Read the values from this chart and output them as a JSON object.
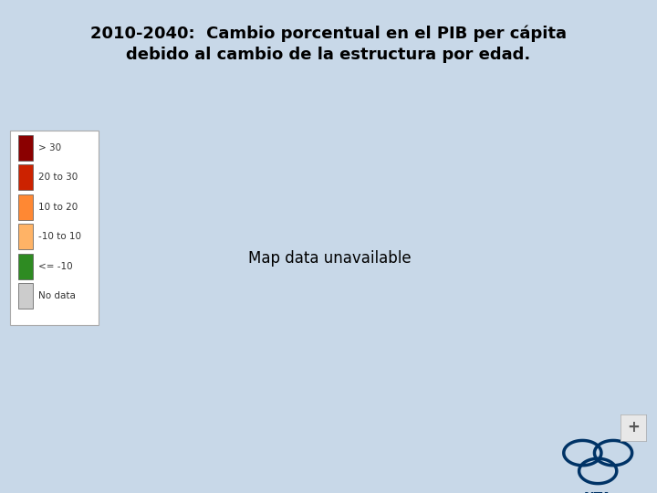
{
  "title_line1": "2010-2040:  Cambio porcentual en el PIB per cápita",
  "title_line2": "debido al cambio de la estructura por edad.",
  "title_fontsize": 13,
  "background_color": "#c8d8e8",
  "ocean_color": "#B8CCE0",
  "legend_labels": [
    "> 30",
    "20 to 30",
    "10 to 20",
    "-10 to 10",
    "<= -10",
    "No data"
  ],
  "legend_colors": [
    "#8B0000",
    "#CC2200",
    "#FF8833",
    "#FFB366",
    "#2E8B22",
    "#CCCCCC"
  ],
  "country_colors": {
    "Canada": "#2E8B22",
    "United States of America": "#2E8B22",
    "Greenland": "#CCCCCC",
    "Russia": "#2E8B22",
    "Norway": "#2E8B22",
    "Sweden": "#2E8B22",
    "Finland": "#2E8B22",
    "Denmark": "#2E8B22",
    "Germany": "#2E8B22",
    "Japan": "#2E8B22",
    "Republic of Korea": "#2E8B22",
    "South Korea": "#2E8B22",
    "China": "#2E8B22",
    "Australia": "#2E8B22",
    "New Zealand": "#2E8B22",
    "France": "#2E8B22",
    "Spain": "#2E8B22",
    "Italy": "#2E8B22",
    "Poland": "#2E8B22",
    "Ukraine": "#2E8B22",
    "Romania": "#2E8B22",
    "Belarus": "#2E8B22",
    "Czech Republic": "#2E8B22",
    "Czechia": "#2E8B22",
    "Slovakia": "#2E8B22",
    "Hungary": "#2E8B22",
    "Austria": "#2E8B22",
    "Switzerland": "#2E8B22",
    "Belgium": "#2E8B22",
    "Netherlands": "#2E8B22",
    "United Kingdom": "#2E8B22",
    "Ireland": "#2E8B22",
    "Portugal": "#2E8B22",
    "Greece": "#2E8B22",
    "Bulgaria": "#2E8B22",
    "Serbia": "#2E8B22",
    "Croatia": "#2E8B22",
    "Bosnia and Herzegovina": "#2E8B22",
    "Slovenia": "#2E8B22",
    "Lithuania": "#2E8B22",
    "Latvia": "#2E8B22",
    "Estonia": "#2E8B22",
    "Moldova": "#2E8B22",
    "Kazakhstan": "#2E8B22",
    "Mongolia": "#2E8B22",
    "Thailand": "#2E8B22",
    "Viet Nam": "#2E8B22",
    "Vietnam": "#2E8B22",
    "Myanmar": "#2E8B22",
    "Sri Lanka": "#2E8B22",
    "Cuba": "#2E8B22",
    "Brazil": "#2E8B22",
    "Argentina": "#2E8B22",
    "Chile": "#2E8B22",
    "Uruguay": "#2E8B22",
    "Mexico": "#2E8B22",
    "Colombia": "#2E8B22",
    "Venezuela": "#2E8B22",
    "Peru": "#2E8B22",
    "Ecuador": "#2E8B22",
    "Bolivia": "#2E8B22",
    "Paraguay": "#2E8B22",
    "Armenia": "#2E8B22",
    "Georgia": "#2E8B22",
    "Azerbaijan": "#2E8B22",
    "Uzbekistan": "#2E8B22",
    "Turkmenistan": "#2E8B22",
    "Kyrgyzstan": "#2E8B22",
    "Tajikistan": "#2E8B22",
    "Iran": "#2E8B22",
    "Turkey": "#2E8B22",
    "Lebanon": "#2E8B22",
    "Tunisia": "#2E8B22",
    "Algeria": "#2E8B22",
    "Morocco": "#2E8B22",
    "Libya": "#2E8B22",
    "Egypt": "#2E8B22",
    "Indonesia": "#2E8B22",
    "Malaysia": "#2E8B22",
    "Philippines": "#2E8B22",
    "Laos": "#2E8B22",
    "Cambodia": "#2E8B22",
    "North Korea": "#2E8B22",
    "Taiwan": "#2E8B22",
    "Macedonia": "#2E8B22",
    "North Macedonia": "#2E8B22",
    "Albania": "#2E8B22",
    "Montenegro": "#2E8B22",
    "Kosovo": "#2E8B22",
    "Luxembourg": "#2E8B22",
    "Trinidad and Tobago": "#2E8B22",
    "Costa Rica": "#2E8B22",
    "Panama": "#2E8B22",
    "Guyana": "#2E8B22",
    "Suriname": "#2E8B22",
    "India": "#FFB366",
    "Bangladesh": "#FFB366",
    "Pakistan": "#FFB366",
    "Nepal": "#FFB366",
    "Saudi Arabia": "#FFB366",
    "Iraq": "#FFB366",
    "Jordan": "#FFB366",
    "Syria": "#FFB366",
    "Yemen": "#FFB366",
    "Oman": "#FFB366",
    "United Arab Emirates": "#FFB366",
    "Kuwait": "#FFB366",
    "Qatar": "#FFB366",
    "Bahrain": "#FFB366",
    "Sudan": "#FFB366",
    "South Sudan": "#FFB366",
    "Ethiopia": "#FFB366",
    "Kenya": "#FFB366",
    "Tanzania": "#FFB366",
    "Mozambique": "#FFB366",
    "Zimbabwe": "#FFB366",
    "Zambia": "#FFB366",
    "Madagascar": "#FFB366",
    "Cameroon": "#FFB366",
    "Senegal": "#FFB366",
    "Ghana": "#FFB366",
    "Ivory Coast": "#FFB366",
    "Cote d'Ivoire": "#FFB366",
    "Guinea": "#FFB366",
    "Sierra Leone": "#FFB366",
    "Liberia": "#FFB366",
    "Togo": "#FFB366",
    "Benin": "#FFB366",
    "Mauritania": "#FFB366",
    "Gambia": "#FFB366",
    "Israel": "#FFB366",
    "Palestine": "#FFB366",
    "Honduras": "#FFB366",
    "Guatemala": "#FFB366",
    "El Salvador": "#FFB366",
    "Nicaragua": "#FFB366",
    "Dominican Republic": "#FFB366",
    "Jamaica": "#FFB366",
    "Papua New Guinea": "#FFB366",
    "Myanmar2": "#FFB366",
    "Afghanistan": "#FF8833",
    "Somalia": "#FF8833",
    "Uganda": "#FF8833",
    "Rwanda": "#FF8833",
    "Burundi": "#FF8833",
    "Eritrea": "#FF8833",
    "Djibouti": "#FF8833",
    "Central African Republic": "#FF8833",
    "Chad": "#FF8833",
    "South Africa": "#FF8833",
    "Botswana": "#FF8833",
    "Namibia": "#FF8833",
    "Lesotho": "#FF8833",
    "Swaziland": "#FF8833",
    "Eswatini": "#FF8833",
    "Angola": "#FF8833",
    "Democratic Republic of the Congo": "#FF8833",
    "Congo": "#FF8833",
    "Republic of the Congo": "#FF8833",
    "Gabon": "#FF8833",
    "Equatorial Guinea": "#FF8833",
    "Nigeria": "#FF8833",
    "Niger": "#FF8833",
    "Mali": "#FF8833",
    "Burkina Faso": "#FF8833",
    "Guinea-Bissau": "#FF8833",
    "Malawi": "#FF8833",
    "Comoros": "#FF8833",
    "Mozambique2": "#FF8833",
    "Haiti": "#CC2200",
    "Timor-Leste": "#8B0000",
    "East Timor": "#8B0000"
  }
}
